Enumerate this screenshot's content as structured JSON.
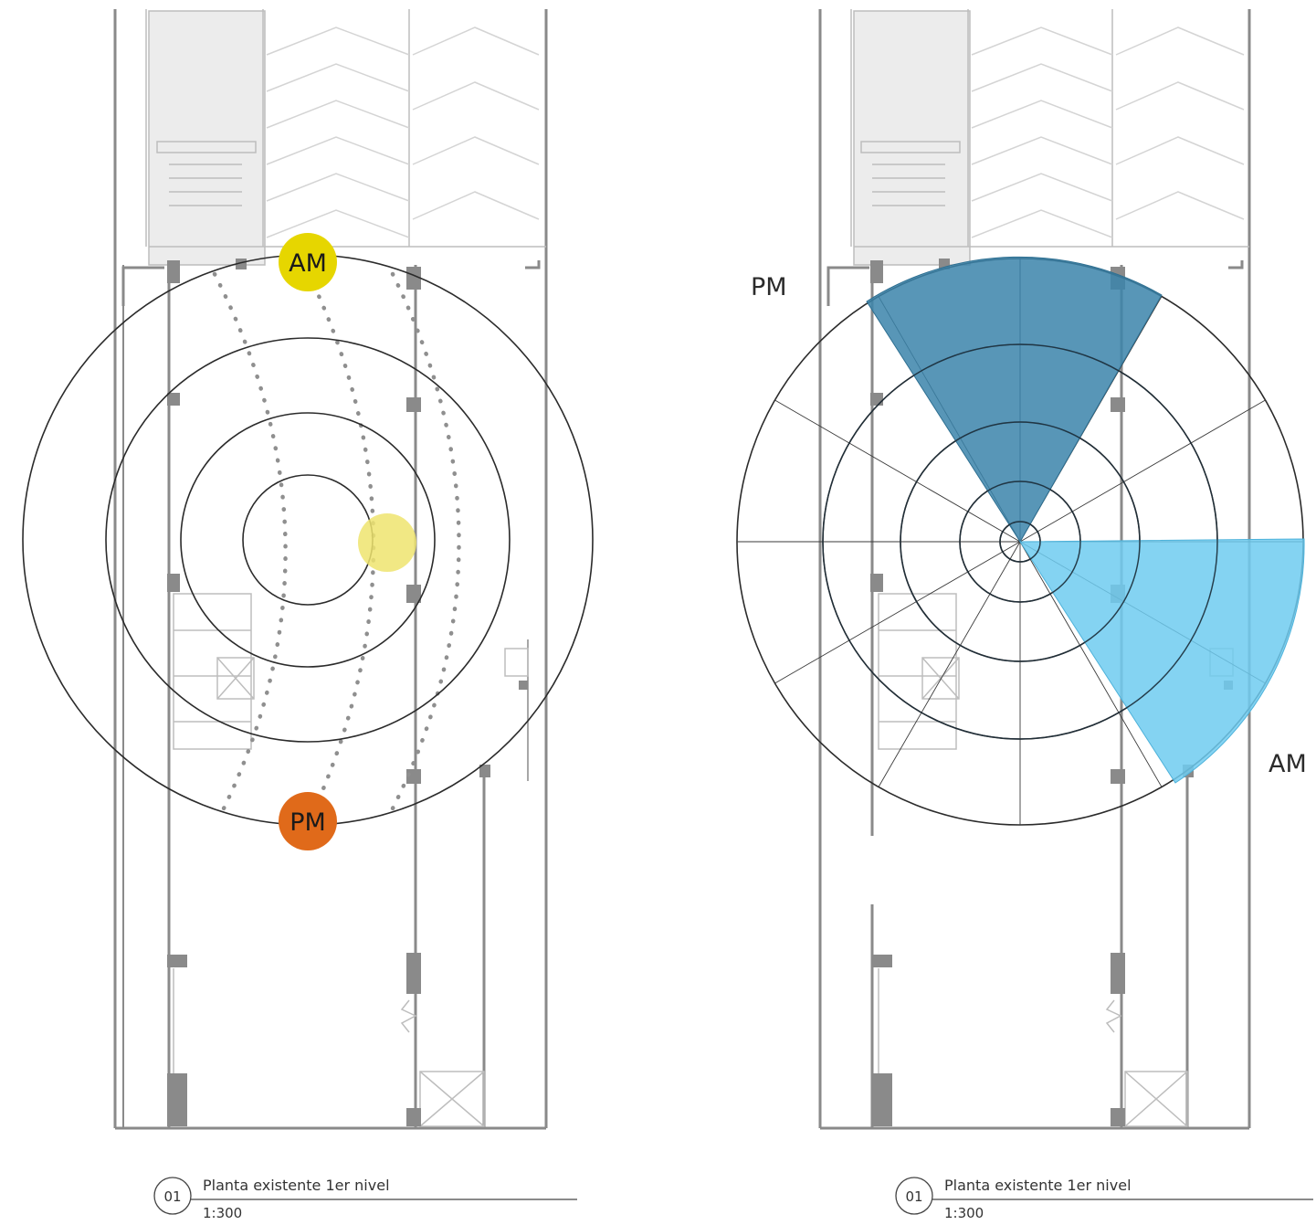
{
  "panels": [
    {
      "id": "sun-path",
      "sun_marker_am": "AM",
      "sun_marker_pm": "PM",
      "caption": {
        "number": "01",
        "title": "Planta existente 1er nivel",
        "scale": "1:300"
      }
    },
    {
      "id": "sun-exposure",
      "label_pm": "PM",
      "label_am": "AM",
      "caption": {
        "number": "01",
        "title": "Planta existente 1er nivel",
        "scale": "1:300"
      }
    }
  ],
  "colors": {
    "am_sun": "#e6d600",
    "pm_sun": "#e06a1a",
    "midday_sun": "#eee46e",
    "pm_sector": "#3b84aa",
    "am_sector": "#6ecbf0",
    "rings": "#2b2b2b",
    "plan_walls": "#8a8a8a",
    "plan_light": "#d4d4d4"
  }
}
